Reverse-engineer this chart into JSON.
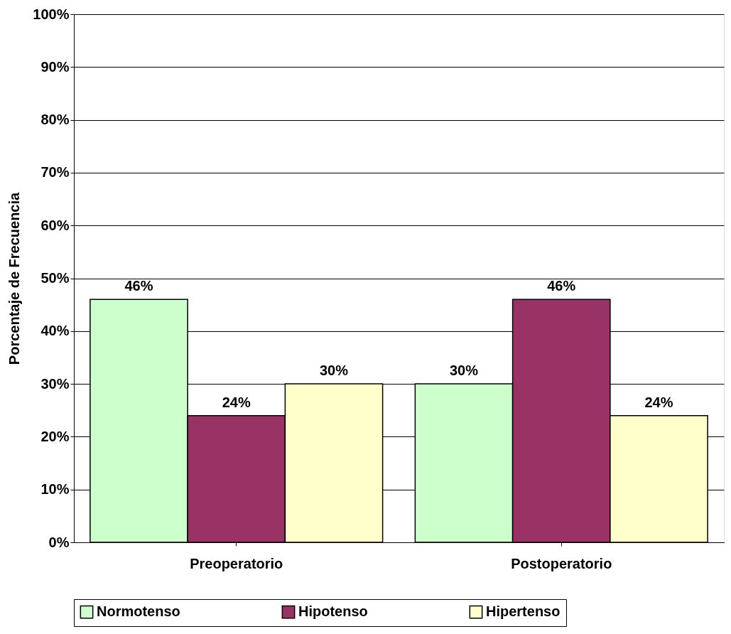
{
  "chart_data": {
    "type": "bar",
    "ylabel": "Porcentaje de Frecuencia",
    "categories": [
      "Preoperatorio",
      "Postoperatorio"
    ],
    "series": [
      {
        "name": "Normotenso",
        "color": "#ccffcc",
        "values": [
          46,
          30
        ],
        "value_labels": [
          "46%",
          "30%"
        ]
      },
      {
        "name": "Hipotenso",
        "color": "#993366",
        "values": [
          24,
          46
        ],
        "value_labels": [
          "24%",
          "46%"
        ]
      },
      {
        "name": "Hipertenso",
        "color": "#ffffcc",
        "values": [
          30,
          24
        ],
        "value_labels": [
          "30%",
          "24%"
        ]
      }
    ],
    "ylim": [
      0,
      100
    ],
    "yticks": [
      {
        "value": 0,
        "label": "0%"
      },
      {
        "value": 10,
        "label": "10%"
      },
      {
        "value": 20,
        "label": "20%"
      },
      {
        "value": 30,
        "label": "30%"
      },
      {
        "value": 40,
        "label": "40%"
      },
      {
        "value": 50,
        "label": "50%"
      },
      {
        "value": 60,
        "label": "60%"
      },
      {
        "value": 70,
        "label": "70%"
      },
      {
        "value": 80,
        "label": "80%"
      },
      {
        "value": 90,
        "label": "90%"
      },
      {
        "value": 100,
        "label": "100%"
      }
    ],
    "grid": "y",
    "legend": "bottom"
  }
}
